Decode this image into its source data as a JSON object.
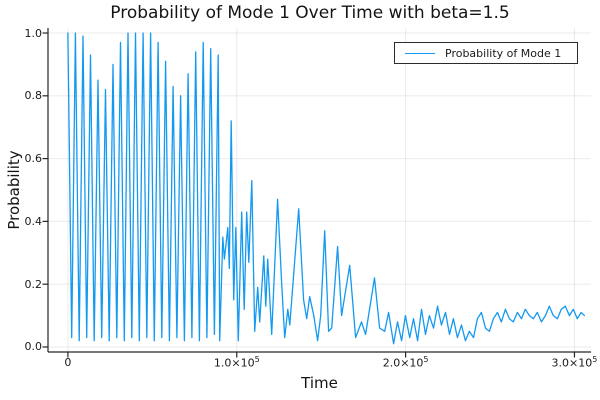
{
  "figure": {
    "background": "#ffffff"
  },
  "chart_data": {
    "type": "line",
    "title": "Probability of Mode 1 Over Time with beta=1.5",
    "xlabel": "Time",
    "ylabel": "Probability",
    "xlim": [
      -11800,
      309800
    ],
    "ylim": [
      -0.016,
      1.016
    ],
    "grid": true,
    "legend_position": "top-right",
    "colors": {
      "series": "#1499F0",
      "grid": "rgba(0,0,0,0.08)",
      "axis": "#262626",
      "text": "#151515"
    },
    "y_ticks": [
      {
        "v": 0.0,
        "label": "0.0"
      },
      {
        "v": 0.2,
        "label": "0.2"
      },
      {
        "v": 0.4,
        "label": "0.4"
      },
      {
        "v": 0.6,
        "label": "0.6"
      },
      {
        "v": 0.8,
        "label": "0.8"
      },
      {
        "v": 1.0,
        "label": "1.0"
      }
    ],
    "x_ticks": [
      {
        "v": 0,
        "base": "0",
        "exp": ""
      },
      {
        "v": 100000,
        "base": "1.0×10",
        "exp": "5"
      },
      {
        "v": 200000,
        "base": "2.0×10",
        "exp": "5"
      },
      {
        "v": 300000,
        "base": "3.0×10",
        "exp": "5"
      }
    ],
    "series": [
      {
        "name": "Probability of Mode 1",
        "color": "#1499F0",
        "points": [
          [
            0,
            1.0
          ],
          [
            2225,
            0.03
          ],
          [
            4450,
            1.0
          ],
          [
            6675,
            0.02
          ],
          [
            8900,
            0.99
          ],
          [
            11125,
            0.03
          ],
          [
            13350,
            0.93
          ],
          [
            15575,
            0.02
          ],
          [
            17800,
            0.85
          ],
          [
            20025,
            0.03
          ],
          [
            22250,
            0.82
          ],
          [
            24475,
            0.02
          ],
          [
            26700,
            0.9
          ],
          [
            28925,
            0.03
          ],
          [
            31150,
            0.97
          ],
          [
            33375,
            0.02
          ],
          [
            35600,
            1.0
          ],
          [
            37825,
            0.03
          ],
          [
            40050,
            1.0
          ],
          [
            42275,
            0.02
          ],
          [
            44500,
            1.0
          ],
          [
            46725,
            0.03
          ],
          [
            48950,
            1.0
          ],
          [
            51175,
            0.02
          ],
          [
            53400,
            0.97
          ],
          [
            55625,
            0.03
          ],
          [
            57850,
            0.91
          ],
          [
            60075,
            0.02
          ],
          [
            62300,
            0.83
          ],
          [
            64525,
            0.03
          ],
          [
            66750,
            0.8
          ],
          [
            68975,
            0.02
          ],
          [
            71200,
            0.87
          ],
          [
            73425,
            0.03
          ],
          [
            75650,
            0.94
          ],
          [
            77875,
            0.02
          ],
          [
            80100,
            0.97
          ],
          [
            82325,
            0.03
          ],
          [
            84550,
            0.95
          ],
          [
            86775,
            0.04
          ],
          [
            89000,
            0.93
          ],
          [
            89900,
            0.02
          ],
          [
            91700,
            0.35
          ],
          [
            92700,
            0.28
          ],
          [
            94700,
            0.38
          ],
          [
            95600,
            0.25
          ],
          [
            96700,
            0.72
          ],
          [
            98200,
            0.15
          ],
          [
            99400,
            0.38
          ],
          [
            100900,
            0.02
          ],
          [
            102900,
            0.43
          ],
          [
            104400,
            0.12
          ],
          [
            105900,
            0.43
          ],
          [
            107100,
            0.27
          ],
          [
            108900,
            0.53
          ],
          [
            110600,
            0.05
          ],
          [
            112400,
            0.19
          ],
          [
            113600,
            0.08
          ],
          [
            116000,
            0.29
          ],
          [
            117200,
            0.13
          ],
          [
            118300,
            0.28
          ],
          [
            120700,
            0.04
          ],
          [
            124200,
            0.47
          ],
          [
            126600,
            0.2
          ],
          [
            128400,
            0.03
          ],
          [
            130200,
            0.12
          ],
          [
            131400,
            0.07
          ],
          [
            136700,
            0.44
          ],
          [
            139600,
            0.15
          ],
          [
            141400,
            0.09
          ],
          [
            143200,
            0.16
          ],
          [
            145600,
            0.1
          ],
          [
            147900,
            0.02
          ],
          [
            149700,
            0.1
          ],
          [
            152100,
            0.37
          ],
          [
            154400,
            0.05
          ],
          [
            156200,
            0.06
          ],
          [
            159700,
            0.32
          ],
          [
            162100,
            0.1
          ],
          [
            166900,
            0.26
          ],
          [
            170400,
            0.03
          ],
          [
            173900,
            0.08
          ],
          [
            176300,
            0.04
          ],
          [
            181600,
            0.22
          ],
          [
            184600,
            0.06
          ],
          [
            187600,
            0.05
          ],
          [
            189900,
            0.11
          ],
          [
            192900,
            0.01
          ],
          [
            195200,
            0.08
          ],
          [
            197600,
            0.02
          ],
          [
            199900,
            0.1
          ],
          [
            202400,
            0.03
          ],
          [
            204700,
            0.09
          ],
          [
            207100,
            0.02
          ],
          [
            209400,
            0.12
          ],
          [
            211800,
            0.04
          ],
          [
            214100,
            0.1
          ],
          [
            216500,
            0.06
          ],
          [
            218900,
            0.13
          ],
          [
            221200,
            0.07
          ],
          [
            223600,
            0.11
          ],
          [
            226000,
            0.04
          ],
          [
            228300,
            0.09
          ],
          [
            230700,
            0.03
          ],
          [
            233100,
            0.07
          ],
          [
            235400,
            0.02
          ],
          [
            237800,
            0.05
          ],
          [
            240200,
            0.03
          ],
          [
            242500,
            0.09
          ],
          [
            244900,
            0.11
          ],
          [
            247300,
            0.06
          ],
          [
            249600,
            0.05
          ],
          [
            252000,
            0.09
          ],
          [
            254400,
            0.11
          ],
          [
            256700,
            0.08
          ],
          [
            259100,
            0.12
          ],
          [
            261500,
            0.09
          ],
          [
            263800,
            0.08
          ],
          [
            266200,
            0.11
          ],
          [
            268600,
            0.09
          ],
          [
            270900,
            0.12
          ],
          [
            273300,
            0.1
          ],
          [
            275700,
            0.09
          ],
          [
            278000,
            0.11
          ],
          [
            280400,
            0.08
          ],
          [
            282800,
            0.1
          ],
          [
            285100,
            0.13
          ],
          [
            287500,
            0.1
          ],
          [
            289900,
            0.09
          ],
          [
            292200,
            0.12
          ],
          [
            294600,
            0.13
          ],
          [
            297000,
            0.1
          ],
          [
            299300,
            0.12
          ],
          [
            301700,
            0.09
          ],
          [
            304000,
            0.11
          ],
          [
            305900,
            0.1
          ]
        ]
      }
    ]
  }
}
